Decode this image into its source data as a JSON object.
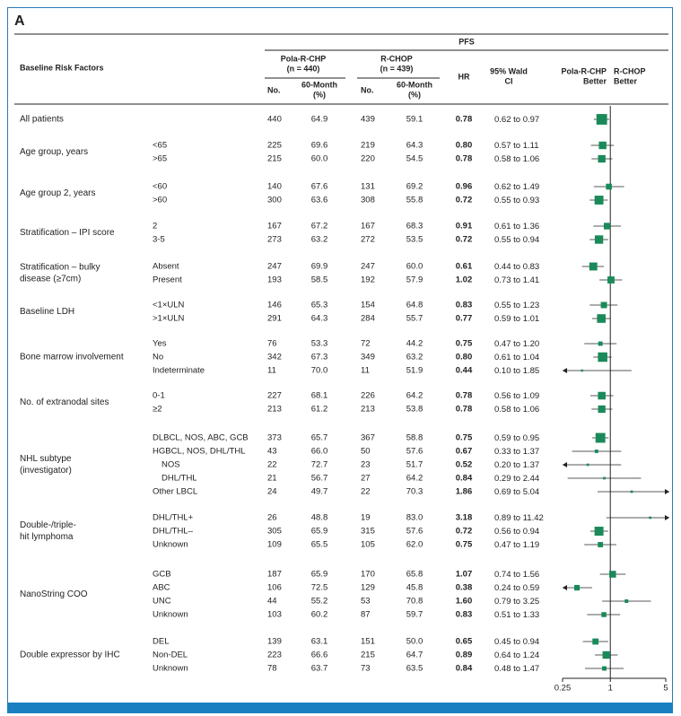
{
  "panel": "A",
  "header": {
    "pfs": "PFS",
    "baseline": "Baseline Risk Factors",
    "pola": [
      "Pola-R-CHP",
      "(n = 440)"
    ],
    "rchop": [
      "R-CHOP",
      "(n = 439)"
    ],
    "no": "No.",
    "month": [
      "60-Month",
      "(%)"
    ],
    "hr": "HR",
    "ci": [
      "95% Wald",
      "CI"
    ],
    "pola_better": [
      "Pola-R-CHP",
      "Better"
    ],
    "rchop_better": [
      "R-CHOP",
      "Better"
    ]
  },
  "ci_joiner": "to",
  "axis": {
    "scale": "log",
    "lim": [
      0.25,
      5
    ],
    "ticks": [
      0.25,
      1,
      5
    ],
    "ref": 1,
    "color": "#1a8a5a"
  },
  "groups": [
    {
      "label": [
        "All patients"
      ],
      "rows": [
        {
          "pola_n": 440,
          "pola_pct": "64.9",
          "rchop_n": 439,
          "rchop_pct": "59.1",
          "hr": 0.78,
          "hr_label": "0.78",
          "ci": [
            0.62,
            0.97
          ],
          "ci_labels": [
            "0.62",
            "0.97"
          ]
        }
      ]
    },
    {
      "label": [
        "Age group, years"
      ],
      "rows": [
        {
          "sub": "<65",
          "pola_n": 225,
          "pola_pct": "69.6",
          "rchop_n": 219,
          "rchop_pct": "64.3",
          "hr": 0.8,
          "hr_label": "0.80",
          "ci": [
            0.57,
            1.11
          ],
          "ci_labels": [
            "0.57",
            "1.11"
          ]
        },
        {
          "sub": ">65",
          "pola_n": 215,
          "pola_pct": "60.0",
          "rchop_n": 220,
          "rchop_pct": "54.5",
          "hr": 0.78,
          "hr_label": "0.78",
          "ci": [
            0.58,
            1.06
          ],
          "ci_labels": [
            "0.58",
            "1.06"
          ]
        }
      ]
    },
    {
      "label": [
        "Age group 2, years"
      ],
      "rows": [
        {
          "sub": "<60",
          "pola_n": 140,
          "pola_pct": "67.6",
          "rchop_n": 131,
          "rchop_pct": "69.2",
          "hr": 0.96,
          "hr_label": "0.96",
          "ci": [
            0.62,
            1.49
          ],
          "ci_labels": [
            "0.62",
            "1.49"
          ]
        },
        {
          "sub": ">60",
          "pola_n": 300,
          "pola_pct": "63.6",
          "rchop_n": 308,
          "rchop_pct": "55.8",
          "hr": 0.72,
          "hr_label": "0.72",
          "ci": [
            0.55,
            0.93
          ],
          "ci_labels": [
            "0.55",
            "0.93"
          ]
        }
      ]
    },
    {
      "label": [
        "Stratification – IPI score"
      ],
      "rows": [
        {
          "sub": "2",
          "pola_n": 167,
          "pola_pct": "67.2",
          "rchop_n": 167,
          "rchop_pct": "68.3",
          "hr": 0.91,
          "hr_label": "0.91",
          "ci": [
            0.61,
            1.36
          ],
          "ci_labels": [
            "0.61",
            "1.36"
          ]
        },
        {
          "sub": "3-5",
          "pola_n": 273,
          "pola_pct": "63.2",
          "rchop_n": 272,
          "rchop_pct": "53.5",
          "hr": 0.72,
          "hr_label": "0.72",
          "ci": [
            0.55,
            0.94
          ],
          "ci_labels": [
            "0.55",
            "0.94"
          ]
        }
      ]
    },
    {
      "label": [
        "Stratification – bulky",
        "disease (≥7cm)"
      ],
      "rows": [
        {
          "sub": "Absent",
          "pola_n": 247,
          "pola_pct": "69.9",
          "rchop_n": 247,
          "rchop_pct": "60.0",
          "hr": 0.61,
          "hr_label": "0.61",
          "ci": [
            0.44,
            0.83
          ],
          "ci_labels": [
            "0.44",
            "0.83"
          ]
        },
        {
          "sub": "Present",
          "pola_n": 193,
          "pola_pct": "58.5",
          "rchop_n": 192,
          "rchop_pct": "57.9",
          "hr": 1.02,
          "hr_label": "1.02",
          "ci": [
            0.73,
            1.41
          ],
          "ci_labels": [
            "0.73",
            "1.41"
          ]
        }
      ]
    },
    {
      "label": [
        "Baseline LDH"
      ],
      "rows": [
        {
          "sub": "<1×ULN",
          "pola_n": 146,
          "pola_pct": "65.3",
          "rchop_n": 154,
          "rchop_pct": "64.8",
          "hr": 0.83,
          "hr_label": "0.83",
          "ci": [
            0.55,
            1.23
          ],
          "ci_labels": [
            "0.55",
            "1.23"
          ]
        },
        {
          "sub": ">1×ULN",
          "pola_n": 291,
          "pola_pct": "64.3",
          "rchop_n": 284,
          "rchop_pct": "55.7",
          "hr": 0.77,
          "hr_label": "0.77",
          "ci": [
            0.59,
            1.01
          ],
          "ci_labels": [
            "0.59",
            "1.01"
          ]
        }
      ]
    },
    {
      "label": [
        "Bone marrow involvement"
      ],
      "rows": [
        {
          "sub": "Yes",
          "pola_n": 76,
          "pola_pct": "53.3",
          "rchop_n": 72,
          "rchop_pct": "44.2",
          "hr": 0.75,
          "hr_label": "0.75",
          "ci": [
            0.47,
            1.2
          ],
          "ci_labels": [
            "0.47",
            "1.20"
          ]
        },
        {
          "sub": "No",
          "pola_n": 342,
          "pola_pct": "67.3",
          "rchop_n": 349,
          "rchop_pct": "63.2",
          "hr": 0.8,
          "hr_label": "0.80",
          "ci": [
            0.61,
            1.04
          ],
          "ci_labels": [
            "0.61",
            "1.04"
          ]
        },
        {
          "sub": "Indeterminate",
          "pola_n": 11,
          "pola_pct": "70.0",
          "rchop_n": 11,
          "rchop_pct": "51.9",
          "hr": 0.44,
          "hr_label": "0.44",
          "ci": [
            0.1,
            1.85
          ],
          "ci_labels": [
            "0.10",
            "1.85"
          ]
        }
      ]
    },
    {
      "label": [
        "No. of extranodal sites"
      ],
      "rows": [
        {
          "sub": "0-1",
          "pola_n": 227,
          "pola_pct": "68.1",
          "rchop_n": 226,
          "rchop_pct": "64.2",
          "hr": 0.78,
          "hr_label": "0.78",
          "ci": [
            0.56,
            1.09
          ],
          "ci_labels": [
            "0.56",
            "1.09"
          ]
        },
        {
          "sub": "≥2",
          "pola_n": 213,
          "pola_pct": "61.2",
          "rchop_n": 213,
          "rchop_pct": "53.8",
          "hr": 0.78,
          "hr_label": "0.78",
          "ci": [
            0.58,
            1.06
          ],
          "ci_labels": [
            "0.58",
            "1.06"
          ]
        }
      ]
    },
    {
      "label": [
        "NHL subtype",
        "(investigator)"
      ],
      "rows": [
        {
          "sub": "DLBCL, NOS, ABC, GCB",
          "pola_n": 373,
          "pola_pct": "65.7",
          "rchop_n": 367,
          "rchop_pct": "58.8",
          "hr": 0.75,
          "hr_label": "0.75",
          "ci": [
            0.59,
            0.95
          ],
          "ci_labels": [
            "0.59",
            "0.95"
          ]
        },
        {
          "sub": "HGBCL, NOS, DHL/THL",
          "pola_n": 43,
          "pola_pct": "66.0",
          "rchop_n": 50,
          "rchop_pct": "57.6",
          "hr": 0.67,
          "hr_label": "0.67",
          "ci": [
            0.33,
            1.37
          ],
          "ci_labels": [
            "0.33",
            "1.37"
          ]
        },
        {
          "sub": "NOS",
          "pola_n": 22,
          "pola_pct": "72.7",
          "rchop_n": 23,
          "rchop_pct": "51.7",
          "hr": 0.52,
          "hr_label": "0.52",
          "ci": [
            0.2,
            1.37
          ],
          "ci_labels": [
            "0.20",
            "1.37"
          ]
        },
        {
          "sub": "DHL/THL",
          "pola_n": 21,
          "pola_pct": "56.7",
          "rchop_n": 27,
          "rchop_pct": "64.2",
          "hr": 0.84,
          "hr_label": "0.84",
          "ci": [
            0.29,
            2.44
          ],
          "ci_labels": [
            "0.29",
            "2.44"
          ]
        },
        {
          "sub": "Other LBCL",
          "pola_n": 24,
          "pola_pct": "49.7",
          "rchop_n": 22,
          "rchop_pct": "70.3",
          "hr": 1.86,
          "hr_label": "1.86",
          "ci": [
            0.69,
            5.04
          ],
          "ci_labels": [
            "0.69",
            "5.04"
          ]
        }
      ]
    },
    {
      "label": [
        "Double-/triple-",
        "hit lymphoma"
      ],
      "rows": [
        {
          "sub": "DHL/THL+",
          "pola_n": 26,
          "pola_pct": "48.8",
          "rchop_n": 19,
          "rchop_pct": "83.0",
          "hr": 3.18,
          "hr_label": "3.18",
          "ci": [
            0.89,
            11.42
          ],
          "ci_labels": [
            "0.89",
            "11.42"
          ]
        },
        {
          "sub": "DHL/THL–",
          "pola_n": 305,
          "pola_pct": "65.9",
          "rchop_n": 315,
          "rchop_pct": "57.6",
          "hr": 0.72,
          "hr_label": "0.72",
          "ci": [
            0.56,
            0.94
          ],
          "ci_labels": [
            "0.56",
            "0.94"
          ]
        },
        {
          "sub": "Unknown",
          "pola_n": 109,
          "pola_pct": "65.5",
          "rchop_n": 105,
          "rchop_pct": "62.0",
          "hr": 0.75,
          "hr_label": "0.75",
          "ci": [
            0.47,
            1.19
          ],
          "ci_labels": [
            "0.47",
            "1.19"
          ]
        }
      ]
    },
    {
      "label": [
        "NanoString COO"
      ],
      "rows": [
        {
          "sub": "GCB",
          "pola_n": 187,
          "pola_pct": "65.9",
          "rchop_n": 170,
          "rchop_pct": "65.8",
          "hr": 1.07,
          "hr_label": "1.07",
          "ci": [
            0.74,
            1.56
          ],
          "ci_labels": [
            "0.74",
            "1.56"
          ]
        },
        {
          "sub": "ABC",
          "pola_n": 106,
          "pola_pct": "72.5",
          "rchop_n": 129,
          "rchop_pct": "45.8",
          "hr": 0.38,
          "hr_label": "0.38",
          "ci": [
            0.24,
            0.59
          ],
          "ci_labels": [
            "0.24",
            "0.59"
          ]
        },
        {
          "sub": "UNC",
          "pola_n": 44,
          "pola_pct": "55.2",
          "rchop_n": 53,
          "rchop_pct": "70.8",
          "hr": 1.6,
          "hr_label": "1.60",
          "ci": [
            0.79,
            3.25
          ],
          "ci_labels": [
            "0.79",
            "3.25"
          ]
        },
        {
          "sub": "Unknown",
          "pola_n": 103,
          "pola_pct": "60.2",
          "rchop_n": 87,
          "rchop_pct": "59.7",
          "hr": 0.83,
          "hr_label": "0.83",
          "ci": [
            0.51,
            1.33
          ],
          "ci_labels": [
            "0.51",
            "1.33"
          ]
        }
      ]
    },
    {
      "label": [
        "Double expressor by IHC"
      ],
      "rows": [
        {
          "sub": "DEL",
          "pola_n": 139,
          "pola_pct": "63.1",
          "rchop_n": 151,
          "rchop_pct": "50.0",
          "hr": 0.65,
          "hr_label": "0.65",
          "ci": [
            0.45,
            0.94
          ],
          "ci_labels": [
            "0.45",
            "0.94"
          ]
        },
        {
          "sub": "Non-DEL",
          "pola_n": 223,
          "pola_pct": "66.6",
          "rchop_n": 215,
          "rchop_pct": "64.7",
          "hr": 0.89,
          "hr_label": "0.89",
          "ci": [
            0.64,
            1.24
          ],
          "ci_labels": [
            "0.64",
            "1.24"
          ]
        },
        {
          "sub": "Unknown",
          "pola_n": 78,
          "pola_pct": "63.7",
          "rchop_n": 73,
          "rchop_pct": "63.5",
          "hr": 0.84,
          "hr_label": "0.84",
          "ci": [
            0.48,
            1.47
          ],
          "ci_labels": [
            "0.48",
            "1.47"
          ]
        }
      ]
    }
  ]
}
